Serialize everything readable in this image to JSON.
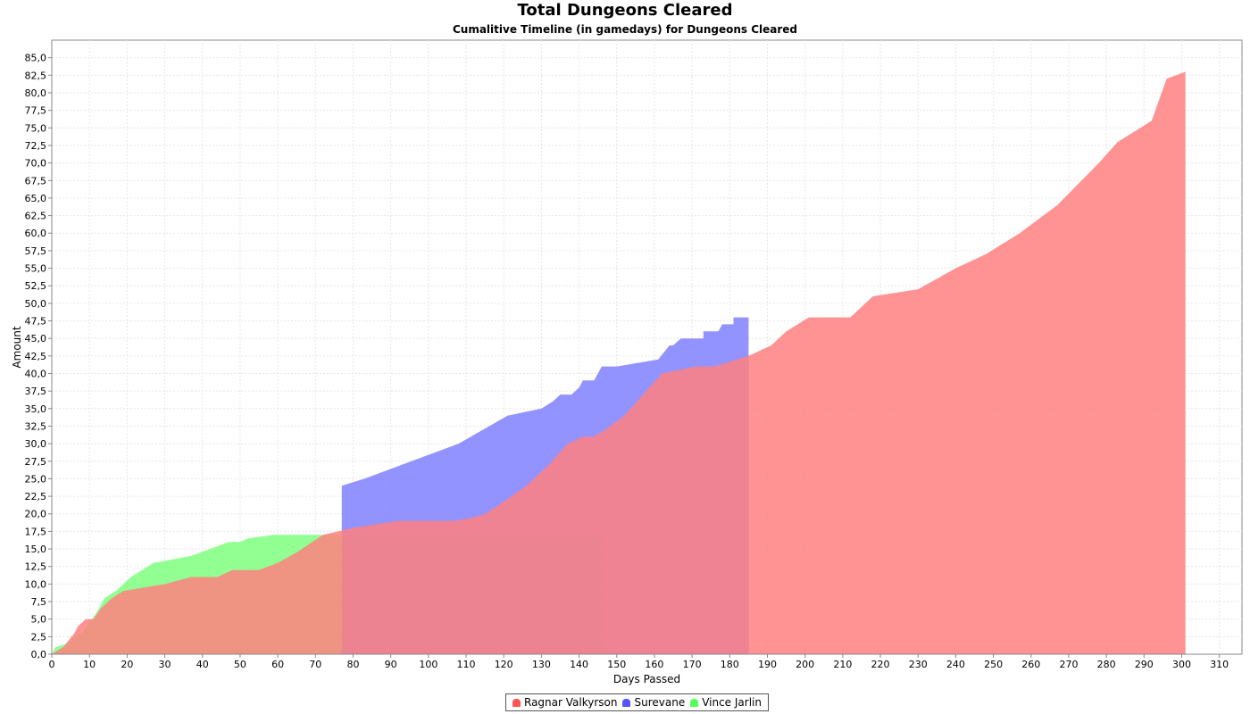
{
  "chart_data": {
    "type": "area",
    "title": "Total Dungeons Cleared",
    "subtitle": "Cumalitive Timeline (in gamedays) for Dungeons Cleared",
    "xlabel": "Days Passed",
    "ylabel": "Amount",
    "xlim": [
      0,
      316
    ],
    "ylim": [
      0,
      87.5
    ],
    "x_ticks": [
      0,
      10,
      20,
      30,
      40,
      50,
      60,
      70,
      80,
      90,
      100,
      110,
      120,
      130,
      140,
      150,
      160,
      170,
      180,
      190,
      200,
      210,
      220,
      230,
      240,
      250,
      260,
      270,
      280,
      290,
      300,
      310
    ],
    "y_ticks": [
      0,
      2.5,
      5,
      7.5,
      10,
      12.5,
      15,
      17.5,
      20,
      22.5,
      25,
      27.5,
      30,
      32.5,
      35,
      37.5,
      40,
      42.5,
      45,
      47.5,
      50,
      52.5,
      55,
      57.5,
      60,
      62.5,
      65,
      67.5,
      70,
      72.5,
      75,
      77.5,
      80,
      82.5,
      85
    ],
    "y_tick_labels": [
      "0,0",
      "2,5",
      "5,0",
      "7,5",
      "10,0",
      "12,5",
      "15,0",
      "17,5",
      "20,0",
      "22,5",
      "25,0",
      "27,5",
      "30,0",
      "32,5",
      "35,0",
      "37,5",
      "40,0",
      "42,5",
      "45,0",
      "47,5",
      "50,0",
      "52,5",
      "55,0",
      "57,5",
      "60,0",
      "62,5",
      "65,0",
      "67,5",
      "70,0",
      "72,5",
      "75,0",
      "77,5",
      "80,0",
      "82,5",
      "85,0"
    ],
    "grid": true,
    "legend_position": "bottom",
    "series": [
      {
        "name": "Vince Jarlin",
        "color": "#7fff7f",
        "points": [
          [
            0,
            0
          ],
          [
            1,
            1
          ],
          [
            4,
            1.5
          ],
          [
            6,
            2.5
          ],
          [
            8,
            3
          ],
          [
            10,
            4.5
          ],
          [
            12,
            6
          ],
          [
            14,
            8
          ],
          [
            17,
            9
          ],
          [
            19,
            10
          ],
          [
            21,
            11
          ],
          [
            27,
            13
          ],
          [
            37,
            14
          ],
          [
            42,
            15
          ],
          [
            47,
            16
          ],
          [
            50,
            16
          ],
          [
            52,
            16.5
          ],
          [
            59,
            17
          ],
          [
            146,
            17
          ],
          [
            146,
            0
          ]
        ]
      },
      {
        "name": "Surevane",
        "color": "#8080ff",
        "points": [
          [
            77,
            0
          ],
          [
            77,
            24
          ],
          [
            83,
            25
          ],
          [
            108,
            30
          ],
          [
            121,
            34
          ],
          [
            130,
            35
          ],
          [
            133,
            36
          ],
          [
            135,
            37
          ],
          [
            138,
            37
          ],
          [
            140,
            38
          ],
          [
            141,
            39
          ],
          [
            144,
            39
          ],
          [
            145,
            40
          ],
          [
            146,
            41
          ],
          [
            150,
            41
          ],
          [
            161,
            42
          ],
          [
            164,
            44
          ],
          [
            165,
            44
          ],
          [
            167,
            45
          ],
          [
            173,
            45
          ],
          [
            173,
            46
          ],
          [
            177,
            46
          ],
          [
            178,
            47
          ],
          [
            181,
            47
          ],
          [
            181,
            48
          ],
          [
            185,
            48
          ],
          [
            185,
            0
          ]
        ]
      },
      {
        "name": "Ragnar Valkyrson",
        "color": "#ff8080",
        "points": [
          [
            0,
            0
          ],
          [
            3,
            1
          ],
          [
            6,
            3
          ],
          [
            7,
            4
          ],
          [
            9,
            5
          ],
          [
            11,
            5
          ],
          [
            13,
            6.5
          ],
          [
            16,
            8
          ],
          [
            19,
            9
          ],
          [
            30,
            10
          ],
          [
            37,
            11
          ],
          [
            44,
            11
          ],
          [
            48,
            12
          ],
          [
            55,
            12
          ],
          [
            60,
            13
          ],
          [
            65,
            14.5
          ],
          [
            72,
            17
          ],
          [
            80,
            18
          ],
          [
            92,
            19
          ],
          [
            107,
            19
          ],
          [
            112,
            19.5
          ],
          [
            115,
            20
          ],
          [
            118,
            21
          ],
          [
            126,
            24
          ],
          [
            132,
            27
          ],
          [
            137,
            30
          ],
          [
            141,
            31
          ],
          [
            144,
            31
          ],
          [
            147,
            32
          ],
          [
            152,
            34
          ],
          [
            162,
            40
          ],
          [
            171,
            41
          ],
          [
            176,
            41
          ],
          [
            185,
            42.5
          ],
          [
            191,
            44
          ],
          [
            195,
            46
          ],
          [
            201,
            48
          ],
          [
            212,
            48
          ],
          [
            218,
            51
          ],
          [
            230,
            52
          ],
          [
            240,
            55
          ],
          [
            248,
            57
          ],
          [
            257,
            60
          ],
          [
            267,
            64
          ],
          [
            278,
            70
          ],
          [
            283,
            73
          ],
          [
            292,
            76
          ],
          [
            296,
            82
          ],
          [
            301,
            83
          ],
          [
            301,
            0
          ]
        ]
      }
    ]
  }
}
